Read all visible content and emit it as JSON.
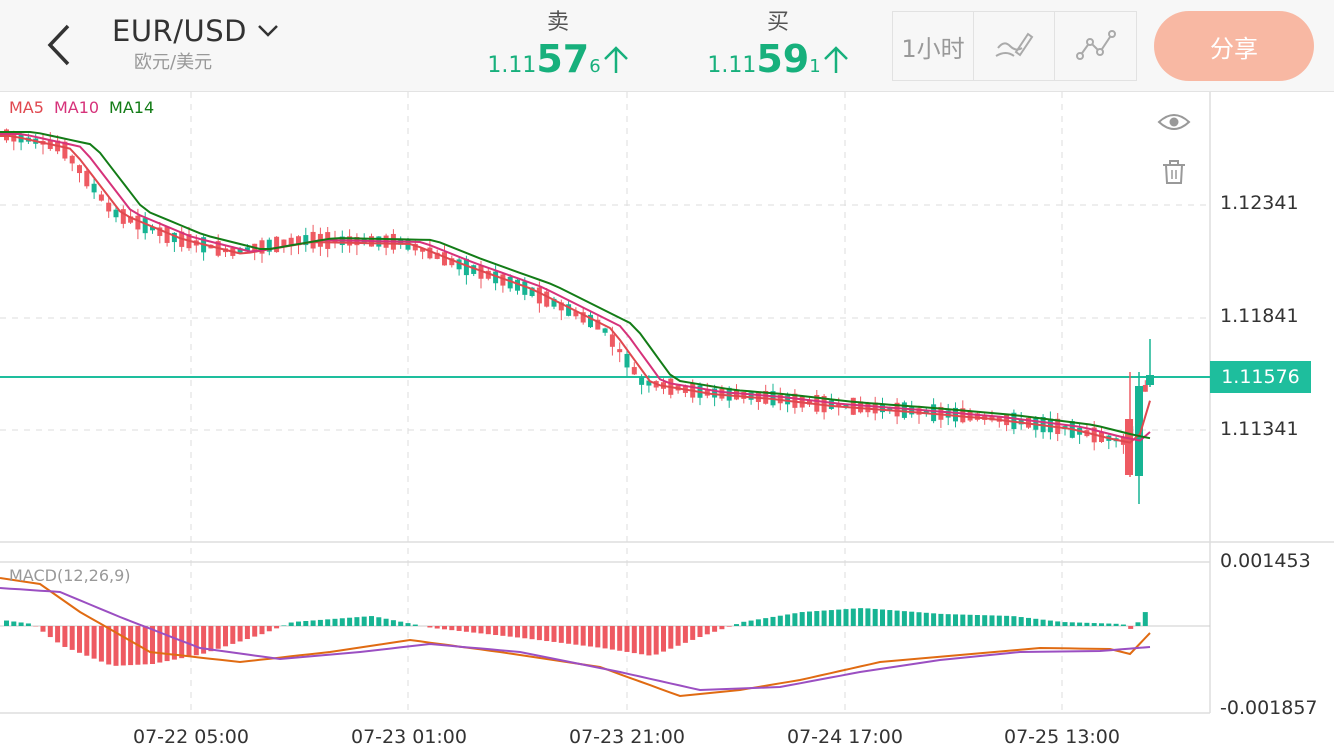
{
  "header": {
    "pair": "EUR/USD",
    "pair_sub": "欧元/美元",
    "sell": {
      "label": "卖",
      "price_prefix": "1.11",
      "price_big": "57",
      "price_tiny": "6"
    },
    "buy": {
      "label": "买",
      "price_prefix": "1.11",
      "price_big": "59",
      "price_tiny": "1"
    },
    "toolbar": {
      "interval": "1小时"
    },
    "share": "分享"
  },
  "colors": {
    "up": "#17b493",
    "down": "#ee5a62",
    "accent_green": "#17b07c",
    "current_line": "#1ebe9d",
    "share_bg": "#f8b8a3"
  },
  "icons": {
    "back": "chevron-left-icon",
    "dropdown": "chevron-down-icon",
    "draw": "pen-draw-icon",
    "indicator": "line-indicator-icon",
    "eye": "eye-icon",
    "trash": "trash-icon",
    "arrow": "arrow-up-icon"
  },
  "chart": {
    "legend": {
      "ma5": "MA5",
      "ma10": "MA10",
      "ma14": "MA14"
    },
    "price_labels": [
      "1.12341",
      "1.11841",
      "1.11341"
    ],
    "current_price": "1.11576",
    "macd_label": "MACD(12,26,9)",
    "macd_labels": {
      "top": "0.001453",
      "bottom": "-0.001857"
    },
    "time_labels": [
      "07-22 05:00",
      "07-23 01:00",
      "07-23 21:00",
      "07-24 17:00",
      "07-25 13:00"
    ]
  }
}
